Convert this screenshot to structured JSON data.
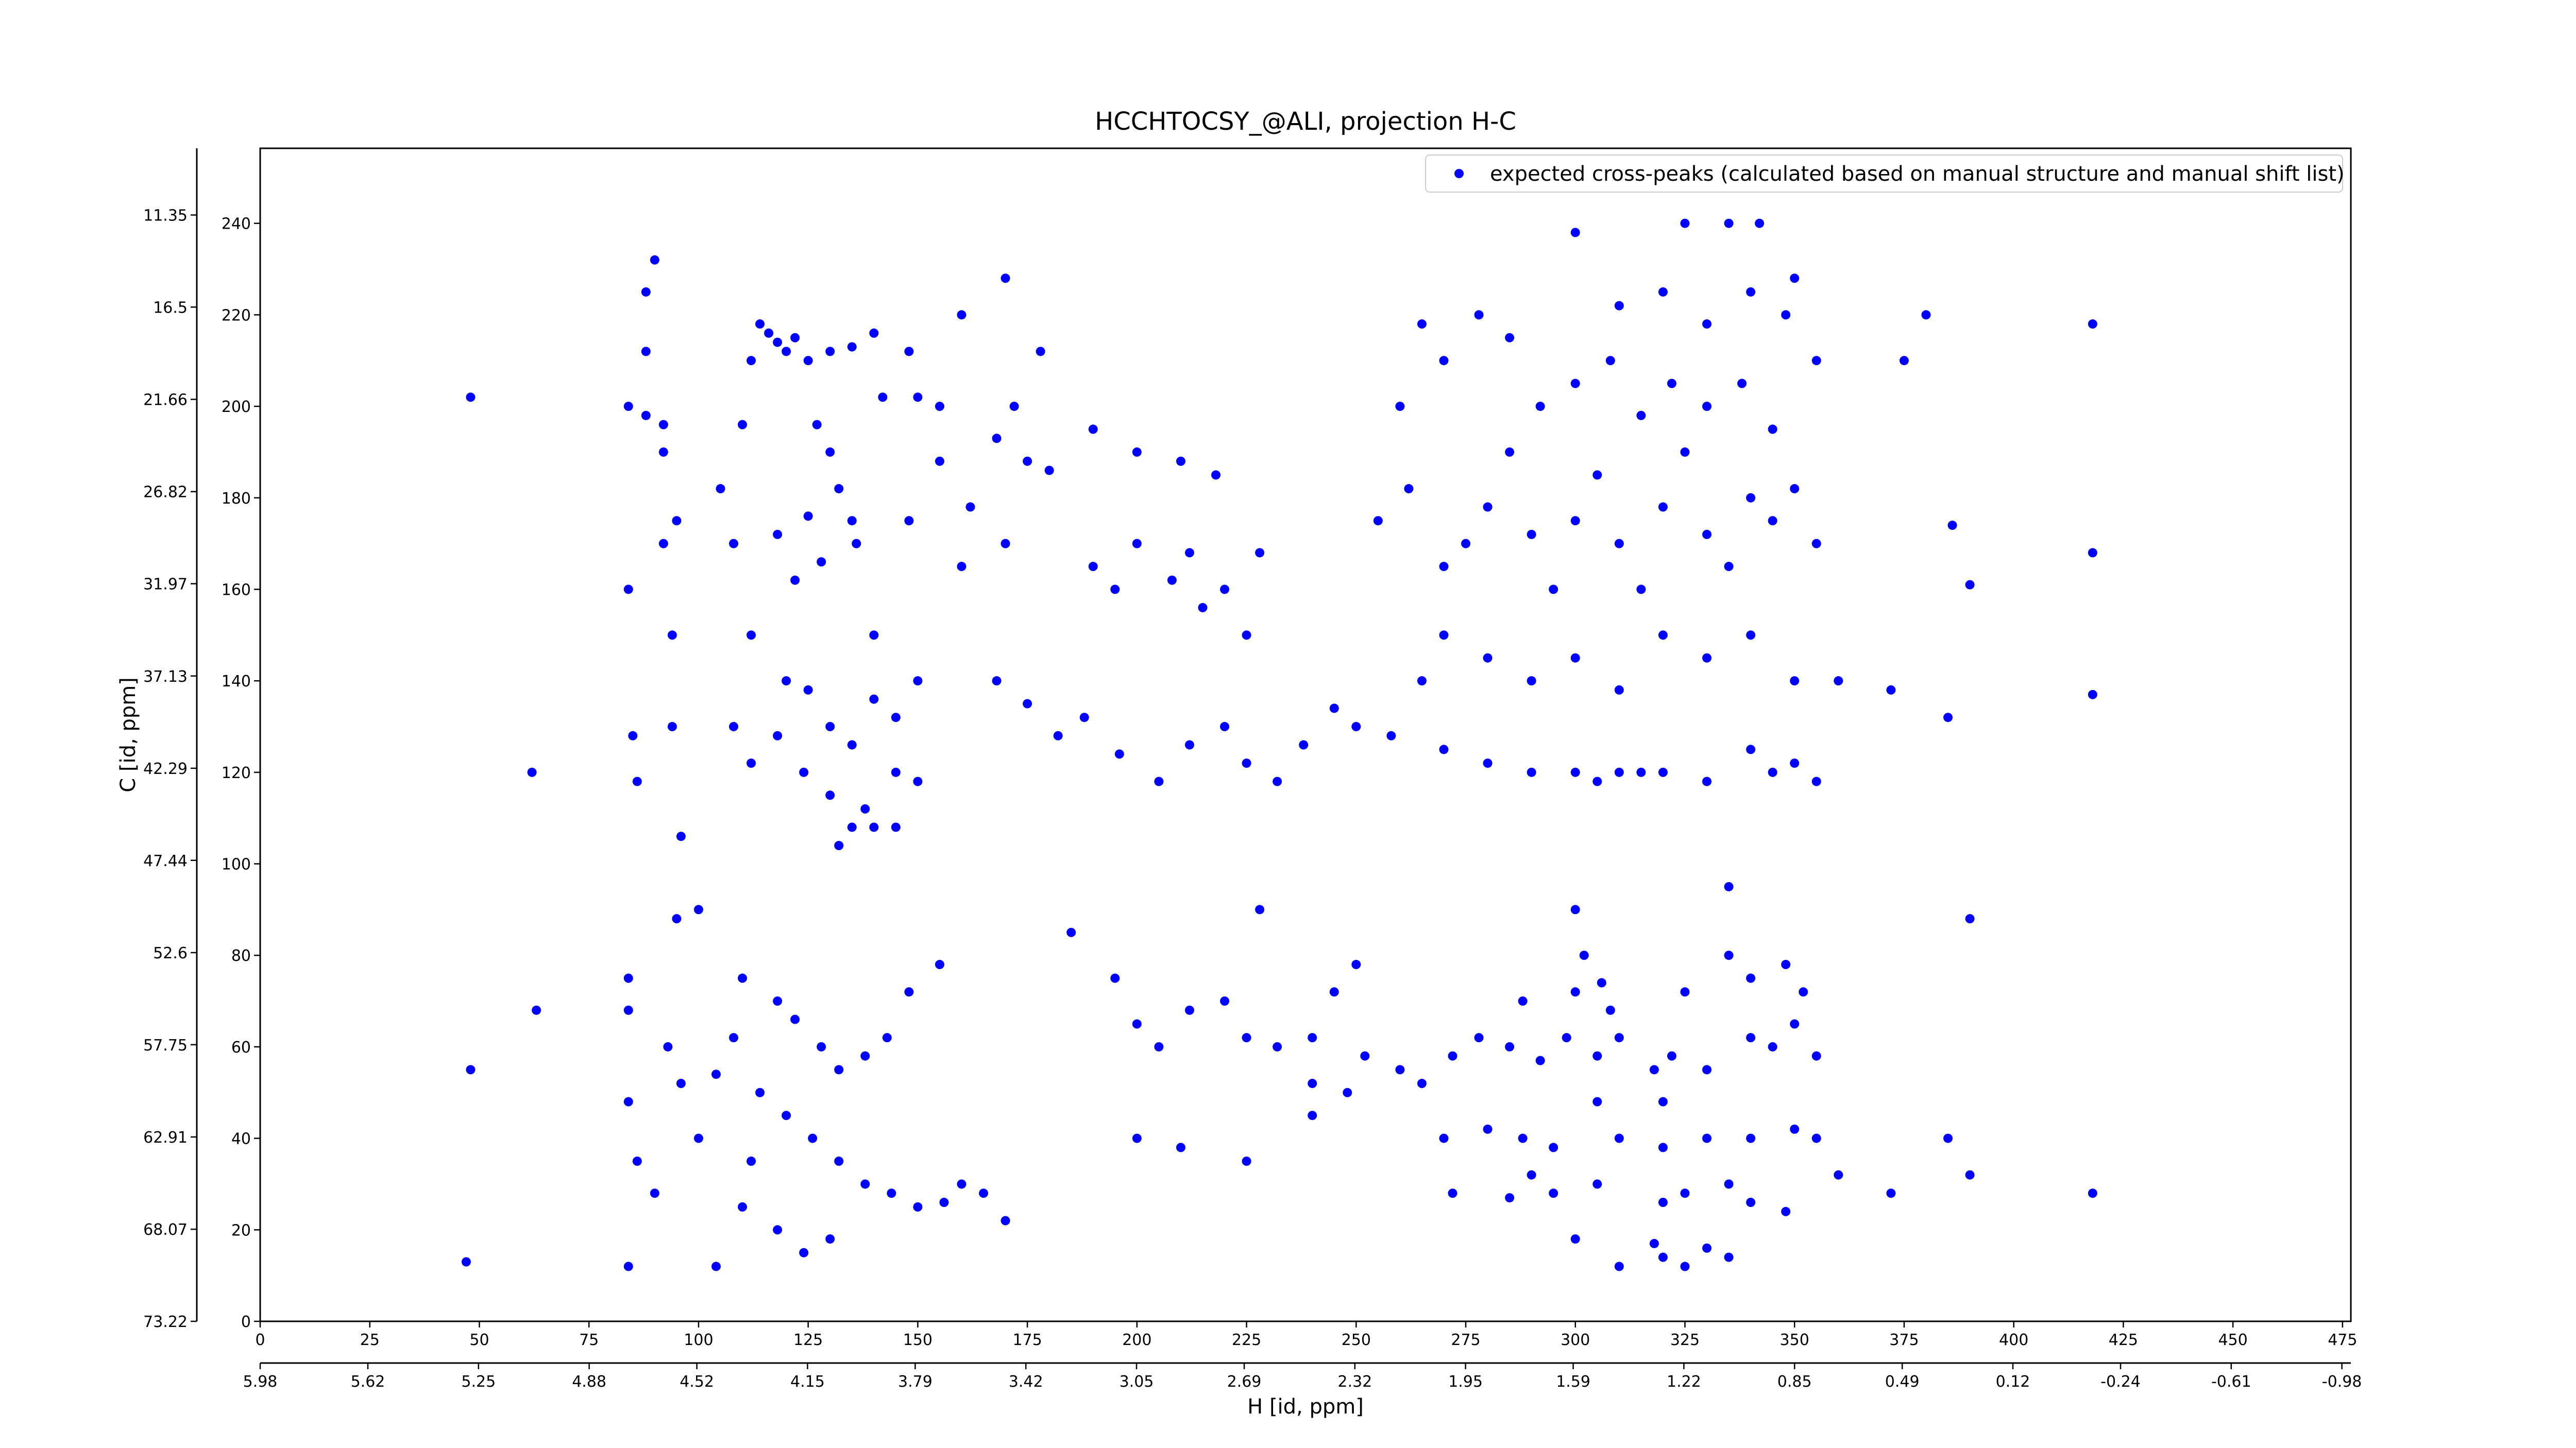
{
  "chart_data": {
    "type": "scatter",
    "title": "HCCHTOCSY_@ALI, projection H-C",
    "xlabel": "H [id, ppm]",
    "ylabel": "C [id, ppm]",
    "xlim": [
      0,
      476.9
    ],
    "xticks": [
      0,
      25,
      50,
      75,
      100,
      125,
      150,
      175,
      200,
      225,
      250,
      275,
      300,
      325,
      350,
      375,
      400,
      425,
      450,
      475
    ],
    "x2lim": [
      5.98,
      -1.01
    ],
    "x2ticks": [
      5.98,
      5.62,
      5.25,
      4.88,
      4.52,
      4.15,
      3.79,
      3.42,
      3.05,
      2.69,
      2.32,
      1.95,
      1.59,
      1.22,
      0.85,
      0.49,
      0.12,
      -0.24,
      -0.61,
      -0.98
    ],
    "ylim": [
      0,
      256.4
    ],
    "yticks": [
      0,
      20,
      40,
      60,
      80,
      100,
      120,
      140,
      160,
      180,
      200,
      220,
      240
    ],
    "y2lim": [
      73.22,
      7.62
    ],
    "y2ticks": [
      73.22,
      68.07,
      62.91,
      57.75,
      52.6,
      47.44,
      42.29,
      37.13,
      31.97,
      26.82,
      21.66,
      16.5,
      11.35
    ],
    "legend": "upper right",
    "series": [
      {
        "name": "expected cross-peaks (calculated based on manual structure and manual shift list)",
        "color": "#0000ff",
        "x": [
          84,
          84,
          84,
          84,
          84,
          84,
          88,
          92,
          92,
          94,
          94,
          95,
          95,
          93,
          90,
          86,
          88,
          88,
          90,
          92,
          96,
          96,
          85,
          86,
          105,
          108,
          110,
          112,
          114,
          116,
          118,
          120,
          122,
          125,
          130,
          135,
          140,
          142,
          148,
          150,
          155,
          160,
          127,
          130,
          132,
          135,
          136,
          128,
          125,
          122,
          118,
          112,
          120,
          125,
          130,
          135,
          140,
          145,
          150,
          108,
          112,
          118,
          124,
          130,
          138,
          145,
          150,
          135,
          140,
          145,
          132,
          100,
          110,
          118,
          122,
          128,
          132,
          138,
          143,
          148,
          155,
          108,
          104,
          114,
          120,
          126,
          132,
          138,
          144,
          150,
          156,
          160,
          165,
          170,
          110,
          118,
          124,
          130,
          112,
          100,
          104,
          140,
          148,
          160,
          170,
          178,
          170,
          172,
          175,
          168,
          180,
          162,
          155,
          190,
          195,
          200,
          208,
          212,
          215,
          220,
          225,
          228,
          218,
          210,
          200,
          190,
          182,
          188,
          196,
          205,
          212,
          220,
          225,
          232,
          238,
          245,
          250,
          175,
          168,
          185,
          195,
          200,
          205,
          212,
          220,
          225,
          232,
          240,
          245,
          250,
          240,
          248,
          200,
          210,
          225,
          240,
          228,
          255,
          262,
          270,
          275,
          280,
          285,
          290,
          295,
          300,
          305,
          310,
          315,
          320,
          325,
          330,
          335,
          340,
          345,
          350,
          355,
          345,
          338,
          330,
          322,
          315,
          308,
          300,
          292,
          285,
          278,
          270,
          265,
          260,
          310,
          320,
          330,
          340,
          348,
          355,
          350,
          335,
          325,
          342,
          300,
          270,
          280,
          290,
          300,
          310,
          320,
          330,
          340,
          350,
          265,
          258,
          270,
          280,
          290,
          300,
          305,
          310,
          315,
          320,
          330,
          340,
          345,
          350,
          355,
          360,
          372,
          375,
          380,
          252,
          260,
          265,
          272,
          278,
          285,
          292,
          298,
          305,
          310,
          318,
          322,
          330,
          340,
          345,
          350,
          355,
          288,
          300,
          302,
          306,
          308,
          325,
          340,
          348,
          352,
          335,
          270,
          280,
          288,
          295,
          310,
          320,
          330,
          340,
          350,
          355,
          272,
          285,
          290,
          295,
          305,
          320,
          325,
          335,
          340,
          348,
          360,
          372,
          300,
          318,
          320,
          325,
          330,
          335,
          310,
          305,
          320,
          300,
          335,
          386,
          390,
          418,
          418,
          418,
          418,
          390,
          390,
          385,
          385,
          48,
          62,
          48,
          47,
          63
        ],
        "values": [
          200,
          160,
          75,
          68,
          48,
          12,
          198,
          190,
          170,
          150,
          130,
          175,
          88,
          60,
          28,
          35,
          212,
          225,
          232,
          196,
          106,
          52,
          128,
          118,
          182,
          170,
          196,
          210,
          218,
          216,
          214,
          212,
          215,
          210,
          212,
          213,
          216,
          202,
          212,
          202,
          200,
          220,
          196,
          190,
          182,
          175,
          170,
          166,
          176,
          162,
          172,
          150,
          140,
          138,
          130,
          126,
          136,
          132,
          140,
          130,
          122,
          128,
          120,
          115,
          112,
          120,
          118,
          108,
          108,
          108,
          104,
          90,
          75,
          70,
          66,
          60,
          55,
          58,
          62,
          72,
          78,
          62,
          54,
          50,
          45,
          40,
          35,
          30,
          28,
          25,
          26,
          30,
          28,
          22,
          25,
          20,
          15,
          18,
          35,
          40,
          12,
          150,
          175,
          165,
          170,
          212,
          228,
          200,
          188,
          193,
          186,
          178,
          188,
          165,
          160,
          170,
          162,
          168,
          156,
          160,
          150,
          168,
          185,
          188,
          190,
          195,
          128,
          132,
          124,
          118,
          126,
          130,
          122,
          118,
          126,
          134,
          130,
          135,
          140,
          85,
          75,
          65,
          60,
          68,
          70,
          62,
          60,
          62,
          72,
          78,
          52,
          50,
          40,
          38,
          35,
          45,
          90,
          175,
          182,
          165,
          170,
          178,
          190,
          172,
          160,
          175,
          185,
          170,
          160,
          178,
          190,
          172,
          165,
          180,
          175,
          182,
          170,
          195,
          205,
          200,
          205,
          198,
          210,
          205,
          200,
          215,
          220,
          210,
          218,
          200,
          222,
          225,
          218,
          225,
          220,
          210,
          228,
          240,
          240,
          240,
          238,
          150,
          145,
          140,
          145,
          138,
          150,
          145,
          150,
          140,
          140,
          128,
          125,
          122,
          120,
          120,
          118,
          120,
          120,
          120,
          118,
          125,
          120,
          122,
          118,
          140,
          138,
          210,
          220,
          58,
          55,
          52,
          58,
          62,
          60,
          57,
          62,
          58,
          62,
          55,
          58,
          55,
          62,
          60,
          65,
          58,
          70,
          72,
          80,
          74,
          68,
          72,
          75,
          78,
          72,
          80,
          40,
          42,
          40,
          38,
          40,
          38,
          40,
          40,
          42,
          40,
          28,
          27,
          32,
          28,
          30,
          26,
          28,
          30,
          26,
          24,
          32,
          28,
          18,
          17,
          14,
          12,
          16,
          14,
          12,
          48,
          48,
          90,
          95,
          174,
          161,
          218,
          168,
          137,
          28,
          88,
          32,
          40,
          132,
          202,
          120,
          55,
          13,
          68
        ]
      }
    ]
  }
}
